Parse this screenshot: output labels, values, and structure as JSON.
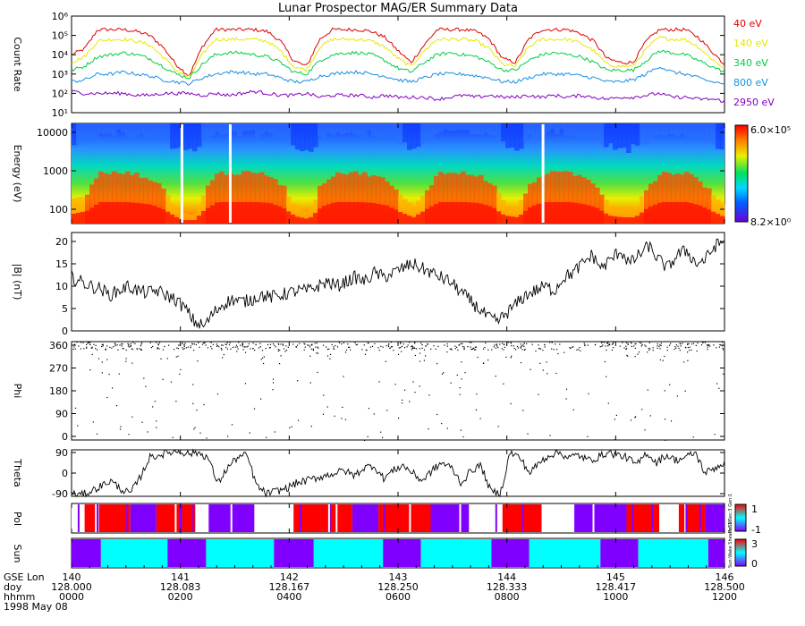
{
  "title": "Lunar Prospector MAG/ER Summary Data",
  "chart_data": [
    {
      "panel": "count-rate",
      "type": "line",
      "ylabel": "Count Rate",
      "yscale": "log",
      "ylim": [
        10,
        1000000
      ],
      "yticks": [
        "10¹",
        "10²",
        "10³",
        "10⁴",
        "10⁵",
        "10⁶"
      ],
      "x": [
        0,
        0.02,
        0.04,
        0.06,
        0.08,
        0.1,
        0.12,
        0.14,
        0.16,
        0.18,
        0.2,
        0.22,
        0.24,
        0.26,
        0.28,
        0.3,
        0.32,
        0.34,
        0.36,
        0.38,
        0.4,
        0.42,
        0.44,
        0.46,
        0.48,
        0.5,
        0.52,
        0.54,
        0.56,
        0.58,
        0.6,
        0.62,
        0.64,
        0.66,
        0.68,
        0.7,
        0.72,
        0.74,
        0.76,
        0.78,
        0.8,
        0.82,
        0.84,
        0.86,
        0.88,
        0.9,
        0.92,
        0.94,
        0.96,
        0.98,
        1.0
      ],
      "series": [
        {
          "name": "40 eV",
          "color": "#e00000",
          "values": [
            4.0,
            4.3,
            5.3,
            5.3,
            5.3,
            5.2,
            5.0,
            4.4,
            3.5,
            2.9,
            4.4,
            5.3,
            5.3,
            5.3,
            5.3,
            5.2,
            4.7,
            3.7,
            3.4,
            4.8,
            5.3,
            5.3,
            5.3,
            5.2,
            4.9,
            4.2,
            3.6,
            4.5,
            5.3,
            5.3,
            5.3,
            5.2,
            4.8,
            3.8,
            3.6,
            4.8,
            5.3,
            5.3,
            5.3,
            5.1,
            4.7,
            3.8,
            3.6,
            3.6,
            4.7,
            5.3,
            5.3,
            5.3,
            4.9,
            4.2,
            3.5
          ]
        },
        {
          "name": "140 eV",
          "color": "#e8e800",
          "values": [
            3.6,
            3.9,
            4.7,
            4.8,
            4.8,
            4.7,
            4.5,
            3.9,
            3.2,
            2.8,
            4.0,
            4.8,
            4.8,
            4.8,
            4.8,
            4.7,
            4.2,
            3.4,
            3.2,
            4.4,
            4.8,
            4.8,
            4.8,
            4.7,
            4.4,
            3.8,
            3.4,
            4.2,
            4.8,
            4.8,
            4.8,
            4.7,
            4.3,
            3.5,
            3.4,
            4.4,
            4.8,
            4.8,
            4.8,
            4.6,
            4.2,
            3.5,
            3.4,
            3.4,
            4.3,
            4.9,
            4.8,
            4.8,
            4.4,
            3.8,
            3.3
          ]
        },
        {
          "name": "340 eV",
          "color": "#00cc44",
          "values": [
            3.2,
            3.4,
            3.9,
            4.0,
            4.1,
            4.0,
            3.8,
            3.4,
            3.0,
            2.8,
            3.5,
            4.0,
            4.1,
            4.1,
            4.0,
            3.9,
            3.6,
            3.1,
            3.0,
            3.7,
            4.0,
            4.1,
            4.1,
            4.0,
            3.7,
            3.3,
            3.1,
            3.6,
            4.0,
            4.1,
            4.0,
            3.9,
            3.6,
            3.2,
            3.2,
            3.7,
            4.0,
            4.1,
            4.0,
            3.9,
            3.6,
            3.2,
            3.2,
            3.2,
            3.7,
            4.2,
            4.1,
            4.0,
            3.7,
            3.4,
            3.1
          ]
        },
        {
          "name": "800 eV",
          "color": "#1a8fe0",
          "values": [
            2.6,
            2.7,
            3.0,
            3.0,
            3.1,
            3.0,
            2.9,
            2.7,
            2.6,
            2.5,
            2.8,
            3.0,
            3.1,
            3.1,
            3.0,
            3.0,
            2.8,
            2.6,
            2.6,
            2.9,
            3.0,
            3.1,
            3.1,
            3.0,
            2.9,
            2.7,
            2.6,
            2.8,
            3.0,
            3.0,
            3.0,
            2.9,
            2.8,
            2.6,
            2.6,
            2.8,
            3.0,
            3.0,
            3.0,
            2.9,
            2.8,
            2.6,
            2.6,
            2.7,
            3.0,
            3.4,
            3.1,
            3.0,
            2.8,
            2.6,
            2.5
          ]
        },
        {
          "name": "2950 eV",
          "color": "#8000c0",
          "values": [
            2.1,
            2.0,
            2.0,
            2.0,
            2.0,
            1.9,
            1.9,
            2.0,
            2.0,
            2.0,
            1.9,
            2.0,
            1.9,
            2.0,
            2.1,
            2.0,
            1.9,
            1.9,
            2.0,
            1.8,
            1.9,
            1.9,
            1.9,
            1.8,
            1.9,
            1.8,
            1.8,
            1.8,
            1.7,
            1.8,
            1.9,
            1.8,
            1.9,
            1.8,
            1.8,
            1.9,
            1.8,
            1.9,
            1.8,
            1.9,
            1.8,
            1.7,
            1.8,
            1.8,
            1.9,
            2.0,
            1.8,
            1.8,
            1.7,
            1.7,
            1.6
          ]
        }
      ]
    },
    {
      "panel": "energy-spectrogram",
      "type": "heatmap",
      "ylabel": "Energy (eV)",
      "yscale": "log",
      "yticks": [
        "10000",
        "1000",
        "100"
      ],
      "colorbar_max": "6.0×10⁵",
      "colorbar_min": "8.2×10⁰"
    },
    {
      "panel": "field-magnitude",
      "type": "line",
      "ylabel": "|B| (nT)",
      "ylim": [
        0,
        22
      ],
      "yticks": [
        "0",
        "5",
        "10",
        "15",
        "20"
      ],
      "values": [
        12,
        11,
        10,
        9.5,
        8,
        9,
        10,
        9,
        8.5,
        9,
        8,
        7,
        5,
        2,
        1,
        4,
        6,
        7,
        6.5,
        7,
        8,
        7.5,
        8,
        8.5,
        9,
        9,
        10,
        11,
        10,
        11,
        12,
        11,
        13,
        12,
        13,
        14,
        15,
        14,
        13,
        12,
        11,
        9,
        7,
        5,
        3,
        2,
        4,
        6,
        8,
        9,
        10,
        9,
        12,
        13,
        15,
        17,
        14,
        16,
        18,
        15,
        17,
        19,
        16,
        14,
        17,
        18,
        15,
        16,
        19,
        20
      ]
    },
    {
      "panel": "phi",
      "type": "scatter",
      "ylabel": "Phi",
      "ylim": [
        0,
        360
      ],
      "yticks": [
        "0",
        "90",
        "180",
        "270",
        "360"
      ]
    },
    {
      "panel": "theta",
      "type": "line",
      "ylabel": "Theta",
      "ylim": [
        -90,
        90
      ],
      "yticks": [
        "-90",
        "0",
        "90"
      ],
      "values": [
        -80,
        -85,
        -70,
        -50,
        -30,
        -60,
        -80,
        -20,
        60,
        70,
        80,
        85,
        75,
        80,
        60,
        -40,
        20,
        60,
        70,
        -50,
        -80,
        -70,
        -60,
        -40,
        -30,
        -20,
        -10,
        0,
        10,
        -10,
        20,
        30,
        -20,
        10,
        30,
        0,
        -30,
        10,
        40,
        20,
        -40,
        10,
        30,
        -70,
        -80,
        80,
        60,
        0,
        40,
        70,
        80,
        60,
        70,
        50,
        60,
        80,
        70,
        60,
        30,
        80,
        40,
        70,
        50,
        60,
        80,
        0,
        20,
        40
      ]
    },
    {
      "panel": "pol",
      "type": "bar",
      "ylabel": "Pol",
      "colorbar_ticks": [
        "1",
        "-1"
      ],
      "side_label": "Pol:1 Sec:3 Gen:1",
      "colors": [
        "#ff0000",
        "#8000ff",
        "#ffffff"
      ]
    },
    {
      "panel": "sun",
      "type": "bar",
      "ylabel": "Sun",
      "colorbar_ticks": [
        "3",
        "0"
      ],
      "side_label": "Sun:Wake Sheath SW",
      "colors": [
        "#8000ff",
        "#00ffff",
        "#ffffff"
      ]
    }
  ],
  "xaxis": {
    "row_labels": [
      "GSE Lon",
      "doy",
      "hhmm",
      "1998 May 08"
    ],
    "ticks": [
      {
        "lon": "140",
        "doy": "128.000",
        "hhmm": "0000"
      },
      {
        "lon": "141",
        "doy": "128.083",
        "hhmm": "0200"
      },
      {
        "lon": "142",
        "doy": "128.167",
        "hhmm": "0400"
      },
      {
        "lon": "143",
        "doy": "128.250",
        "hhmm": "0600"
      },
      {
        "lon": "144",
        "doy": "128.333",
        "hhmm": "0800"
      },
      {
        "lon": "145",
        "doy": "128.417",
        "hhmm": "1000"
      },
      {
        "lon": "146",
        "doy": "128.500",
        "hhmm": "1200"
      }
    ]
  }
}
